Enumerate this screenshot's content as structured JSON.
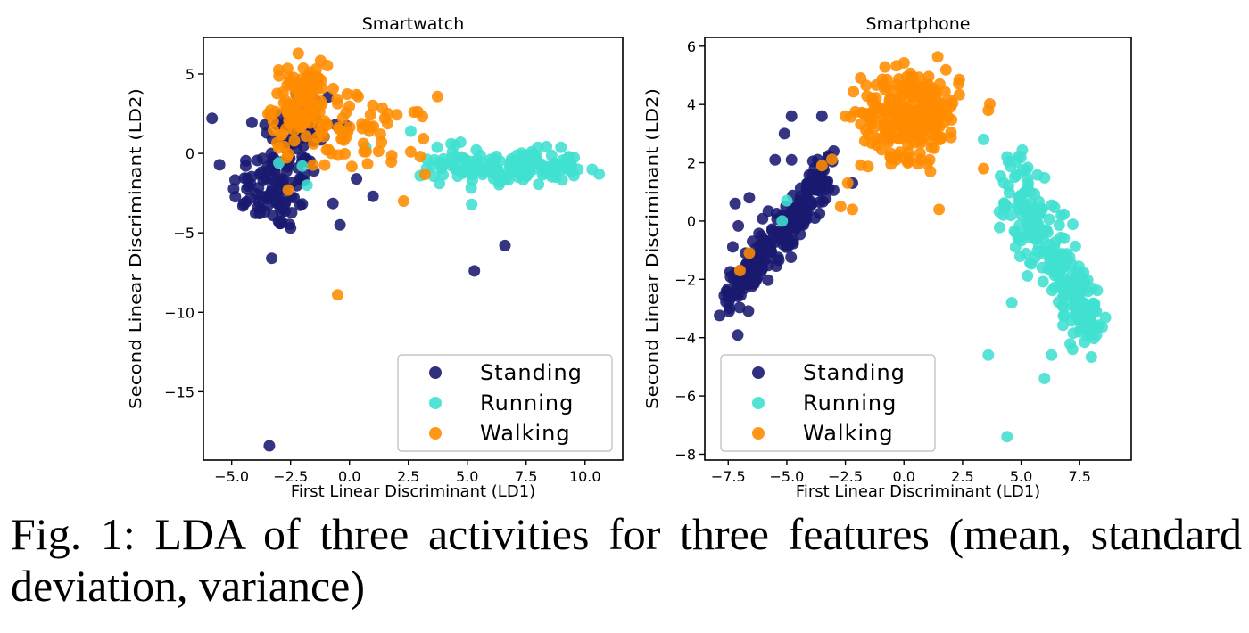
{
  "figure_caption": "Fig. 1: LDA of three activities for three features (mean, standard deviation, variance)",
  "colors": {
    "Standing": "#191970",
    "Running": "#40e0d0",
    "Walking": "#ff8c00"
  },
  "chart_data": [
    {
      "type": "scatter",
      "title": "Smartwatch",
      "xlabel": "First Linear Discriminant (LD1)",
      "ylabel": "Second Linear Discriminant (LD2)",
      "xlim": [
        -6.2,
        11.6
      ],
      "ylim": [
        -19.3,
        7.3
      ],
      "xticks": [
        -5.0,
        -2.5,
        0.0,
        2.5,
        5.0,
        7.5,
        10.0
      ],
      "xtick_labels": [
        "−5.0",
        "−2.5",
        "0.0",
        "2.5",
        "5.0",
        "7.5",
        "10.0"
      ],
      "yticks": [
        5,
        0,
        -5,
        -10,
        -15
      ],
      "ytick_labels": [
        "5",
        "0",
        "−5",
        "−10",
        "−15"
      ],
      "legend": {
        "position": "lower-right",
        "entries": [
          "Standing",
          "Running",
          "Walking"
        ]
      },
      "series": [
        {
          "name": "Standing",
          "clusters": [
            {
              "cx": -3.2,
              "cy": -2.2,
              "sx": 0.9,
              "sy": 1.3,
              "n": 90
            },
            {
              "cx": -2.2,
              "cy": 1.5,
              "sx": 0.9,
              "sy": 1.5,
              "n": 60
            }
          ],
          "points": [
            [
              -3.3,
              -6.6
            ],
            [
              -3.4,
              -18.4
            ],
            [
              5.3,
              -7.4
            ],
            [
              6.6,
              -5.8
            ],
            [
              -0.4,
              -4.5
            ],
            [
              1.0,
              -2.7
            ],
            [
              -2.5,
              -4.7
            ],
            [
              0.3,
              -1.6
            ]
          ]
        },
        {
          "name": "Running",
          "clusters": [
            {
              "cx": 7.2,
              "cy": -0.9,
              "sx": 1.3,
              "sy": 0.55,
              "n": 140
            },
            {
              "cx": 4.5,
              "cy": -0.5,
              "sx": 0.9,
              "sy": 0.6,
              "n": 30
            }
          ],
          "points": [
            [
              10.6,
              -1.3
            ],
            [
              9.7,
              -1.0
            ],
            [
              3.0,
              -1.4
            ],
            [
              -2.0,
              -0.8
            ],
            [
              -1.8,
              -2.0
            ],
            [
              -3.0,
              -0.6
            ],
            [
              0.7,
              0.4
            ],
            [
              2.6,
              1.4
            ]
          ]
        },
        {
          "name": "Walking",
          "clusters": [
            {
              "cx": -2.1,
              "cy": 3.0,
              "sx": 0.6,
              "sy": 1.3,
              "n": 120
            },
            {
              "cx": 0.5,
              "cy": 1.2,
              "sx": 1.5,
              "sy": 1.2,
              "n": 55
            }
          ],
          "points": [
            [
              -0.5,
              -8.9
            ],
            [
              2.3,
              -3.0
            ],
            [
              -2.6,
              -2.3
            ],
            [
              0.3,
              3.7
            ],
            [
              1.5,
              2.2
            ],
            [
              2.6,
              0.1
            ],
            [
              3.0,
              -0.2
            ],
            [
              -1.2,
              4.6
            ]
          ]
        }
      ]
    },
    {
      "type": "scatter",
      "title": "Smartphone",
      "xlabel": "First Linear Discriminant (LD1)",
      "ylabel": "Second Linear Discriminant (LD2)",
      "xlim": [
        -8.5,
        9.7
      ],
      "ylim": [
        -8.2,
        6.3
      ],
      "xticks": [
        -7.5,
        -5.0,
        -2.5,
        0.0,
        2.5,
        5.0,
        7.5
      ],
      "xtick_labels": [
        "−7.5",
        "−5.0",
        "−2.5",
        "0.0",
        "2.5",
        "5.0",
        "7.5"
      ],
      "yticks": [
        6,
        4,
        2,
        0,
        -2,
        -4,
        -6,
        -8
      ],
      "ytick_labels": [
        "6",
        "4",
        "2",
        "0",
        "−2",
        "−4",
        "−6",
        "−8"
      ],
      "legend": {
        "position": "lower-left",
        "entries": [
          "Standing",
          "Running",
          "Walking"
        ]
      },
      "series": [
        {
          "name": "Standing",
          "diagonals": [
            {
              "x0": -7.5,
              "y0": -2.6,
              "x1": -3.2,
              "y1": 1.6,
              "spread": 0.45,
              "n": 220
            }
          ],
          "points": [
            [
              -4.8,
              3.6
            ],
            [
              -3.5,
              3.6
            ],
            [
              -5.1,
              3.0
            ],
            [
              -4.8,
              2.1
            ],
            [
              -5.5,
              2.1
            ],
            [
              -6.6,
              0.8
            ],
            [
              -7.2,
              0.6
            ],
            [
              -2.2,
              1.3
            ],
            [
              -3.0,
              2.4
            ]
          ]
        },
        {
          "name": "Running",
          "diagonals": [
            {
              "x0": 4.6,
              "y0": 1.4,
              "x1": 8.2,
              "y1": -3.8,
              "spread": 0.65,
              "n": 240
            }
          ],
          "points": [
            [
              4.4,
              -7.4
            ],
            [
              6.0,
              -5.4
            ],
            [
              6.3,
              -4.6
            ],
            [
              3.6,
              -4.6
            ],
            [
              4.6,
              -2.8
            ],
            [
              7.2,
              -4.4
            ],
            [
              4.4,
              2.2
            ],
            [
              3.4,
              2.8
            ],
            [
              -5.2,
              0.0
            ],
            [
              -5.0,
              0.7
            ]
          ]
        },
        {
          "name": "Walking",
          "clusters": [
            {
              "cx": 0.3,
              "cy": 3.7,
              "sx": 1.05,
              "sy": 0.75,
              "n": 260
            }
          ],
          "points": [
            [
              1.5,
              0.4
            ],
            [
              -2.2,
              0.4
            ],
            [
              -2.7,
              0.5
            ],
            [
              -7.0,
              -1.7
            ],
            [
              -6.6,
              -1.1
            ],
            [
              3.4,
              1.8
            ],
            [
              3.6,
              3.8
            ],
            [
              -3.5,
              1.9
            ],
            [
              -2.4,
              1.3
            ],
            [
              1.1,
              2.1
            ]
          ]
        }
      ]
    }
  ]
}
